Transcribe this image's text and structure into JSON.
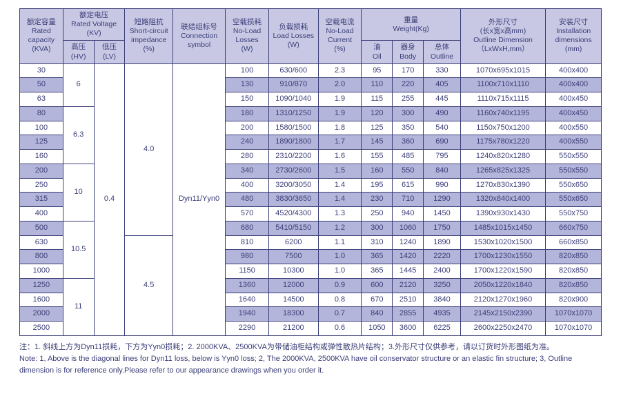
{
  "header": {
    "capacity": {
      "zh": "额定容量",
      "en": "Rated capacity",
      "unit": "(KVA)"
    },
    "voltage": {
      "zh": "额定电压",
      "en": "Rated Voltage",
      "unit": "(KV)"
    },
    "hv": {
      "zh": "高压",
      "en": "(HV)"
    },
    "lv": {
      "zh": "低压",
      "en": "(LV)"
    },
    "impedance": {
      "zh": "短路阻抗",
      "en": "Short-circuit impedance",
      "unit": "(%)"
    },
    "conn": {
      "zh": "联结组标号",
      "en": "Connection symbol"
    },
    "noload": {
      "zh": "空载损耗",
      "en": "No-Load Losses",
      "unit": "(W)"
    },
    "load": {
      "zh": "负载损耗",
      "en": "Load Losses",
      "unit": "(W)"
    },
    "nlcurrent": {
      "zh": "空载电流",
      "en": "No-Load Current",
      "unit": "(%)"
    },
    "weight": {
      "zh": "重量",
      "en": "Weight(Kg)"
    },
    "oil": {
      "zh": "油",
      "en": "Oil"
    },
    "body": {
      "zh": "器身",
      "en": "Body"
    },
    "outline": {
      "zh": "总体",
      "en": "Outline"
    },
    "dim": {
      "zh": "外形尺寸",
      "zh2": "(长x宽x高mm)",
      "en": "Outline Dimension",
      "unit": "（LxWxH,mm）"
    },
    "install": {
      "zh": "安装尺寸",
      "en": "Installation dimensions",
      "unit": "(mm)"
    }
  },
  "merge": {
    "hv_vals": [
      "6",
      "6.3",
      "10",
      "10.5",
      "11"
    ],
    "lv_val": "0.4",
    "imp_vals": [
      "4.0",
      "4.5"
    ],
    "conn_val": "Dyn11/Yyn0"
  },
  "rows": [
    {
      "kva": "30",
      "nl": "100",
      "ld": "630/600",
      "nlc": "2.3",
      "oil": "95",
      "body": "170",
      "out": "330",
      "dim": "1070x695x1015",
      "ins": "400x400"
    },
    {
      "kva": "50",
      "nl": "130",
      "ld": "910/870",
      "nlc": "2.0",
      "oil": "110",
      "body": "220",
      "out": "405",
      "dim": "1100x710x1110",
      "ins": "400x400"
    },
    {
      "kva": "63",
      "nl": "150",
      "ld": "1090/1040",
      "nlc": "1.9",
      "oil": "115",
      "body": "255",
      "out": "445",
      "dim": "1110x715x1115",
      "ins": "400x450"
    },
    {
      "kva": "80",
      "nl": "180",
      "ld": "1310/1250",
      "nlc": "1.9",
      "oil": "120",
      "body": "300",
      "out": "490",
      "dim": "1160x740x1195",
      "ins": "400x450"
    },
    {
      "kva": "100",
      "nl": "200",
      "ld": "1580/1500",
      "nlc": "1.8",
      "oil": "125",
      "body": "350",
      "out": "540",
      "dim": "1150x750x1200",
      "ins": "400x550"
    },
    {
      "kva": "125",
      "nl": "240",
      "ld": "1890/1800",
      "nlc": "1.7",
      "oil": "145",
      "body": "360",
      "out": "690",
      "dim": "1175x780x1220",
      "ins": "400x550"
    },
    {
      "kva": "160",
      "nl": "280",
      "ld": "2310/2200",
      "nlc": "1.6",
      "oil": "155",
      "body": "485",
      "out": "795",
      "dim": "1240x820x1280",
      "ins": "550x550"
    },
    {
      "kva": "200",
      "nl": "340",
      "ld": "2730/2600",
      "nlc": "1.5",
      "oil": "160",
      "body": "550",
      "out": "840",
      "dim": "1265x825x1325",
      "ins": "550x550"
    },
    {
      "kva": "250",
      "nl": "400",
      "ld": "3200/3050",
      "nlc": "1.4",
      "oil": "195",
      "body": "615",
      "out": "990",
      "dim": "1270x830x1390",
      "ins": "550x650"
    },
    {
      "kva": "315",
      "nl": "480",
      "ld": "3830/3650",
      "nlc": "1.4",
      "oil": "230",
      "body": "710",
      "out": "1290",
      "dim": "1320x840x1400",
      "ins": "550x650"
    },
    {
      "kva": "400",
      "nl": "570",
      "ld": "4520/4300",
      "nlc": "1.3",
      "oil": "250",
      "body": "940",
      "out": "1450",
      "dim": "1390x930x1430",
      "ins": "550x750"
    },
    {
      "kva": "500",
      "nl": "680",
      "ld": "5410/5150",
      "nlc": "1.2",
      "oil": "300",
      "body": "1060",
      "out": "1750",
      "dim": "1485x1015x1450",
      "ins": "660x750"
    },
    {
      "kva": "630",
      "nl": "810",
      "ld": "6200",
      "nlc": "1.1",
      "oil": "310",
      "body": "1240",
      "out": "1890",
      "dim": "1530x1020x1500",
      "ins": "660x850"
    },
    {
      "kva": "800",
      "nl": "980",
      "ld": "7500",
      "nlc": "1.0",
      "oil": "365",
      "body": "1420",
      "out": "2220",
      "dim": "1700x1230x1550",
      "ins": "820x850"
    },
    {
      "kva": "1000",
      "nl": "1150",
      "ld": "10300",
      "nlc": "1.0",
      "oil": "365",
      "body": "1445",
      "out": "2400",
      "dim": "1700x1220x1590",
      "ins": "820x850"
    },
    {
      "kva": "1250",
      "nl": "1360",
      "ld": "12000",
      "nlc": "0.9",
      "oil": "600",
      "body": "2120",
      "out": "3250",
      "dim": "2050x1220x1840",
      "ins": "820x850"
    },
    {
      "kva": "1600",
      "nl": "1640",
      "ld": "14500",
      "nlc": "0.8",
      "oil": "670",
      "body": "2510",
      "out": "3840",
      "dim": "2120x1270x1960",
      "ins": "820x900"
    },
    {
      "kva": "2000",
      "nl": "1940",
      "ld": "18300",
      "nlc": "0.7",
      "oil": "840",
      "body": "2855",
      "out": "4935",
      "dim": "2145x2150x2390",
      "ins": "1070x1070"
    },
    {
      "kva": "2500",
      "nl": "2290",
      "ld": "21200",
      "nlc": "0.6",
      "oil": "1050",
      "body": "3600",
      "out": "6225",
      "dim": "2600x2250x2470",
      "ins": "1070x1070"
    }
  ],
  "notes": {
    "zh": "注：1. 斜线上方为Dyn11损耗，下方为Yyn0损耗；2. 2000KVA、2500KVA为带储油柜结构或弹性散热片结构；3.外形尺寸仅供参考，请以订货时外形图纸为准。",
    "en": "Note: 1, Above is the diagonal lines for Dyn11 loss, below is Yyn0 loss; 2, The 2000KVA, 2500KVA have oil conservator structure or an elastic fin structure; 3, Outline dimension is for reference only.Please refer to our appearance drawings when you order it."
  }
}
